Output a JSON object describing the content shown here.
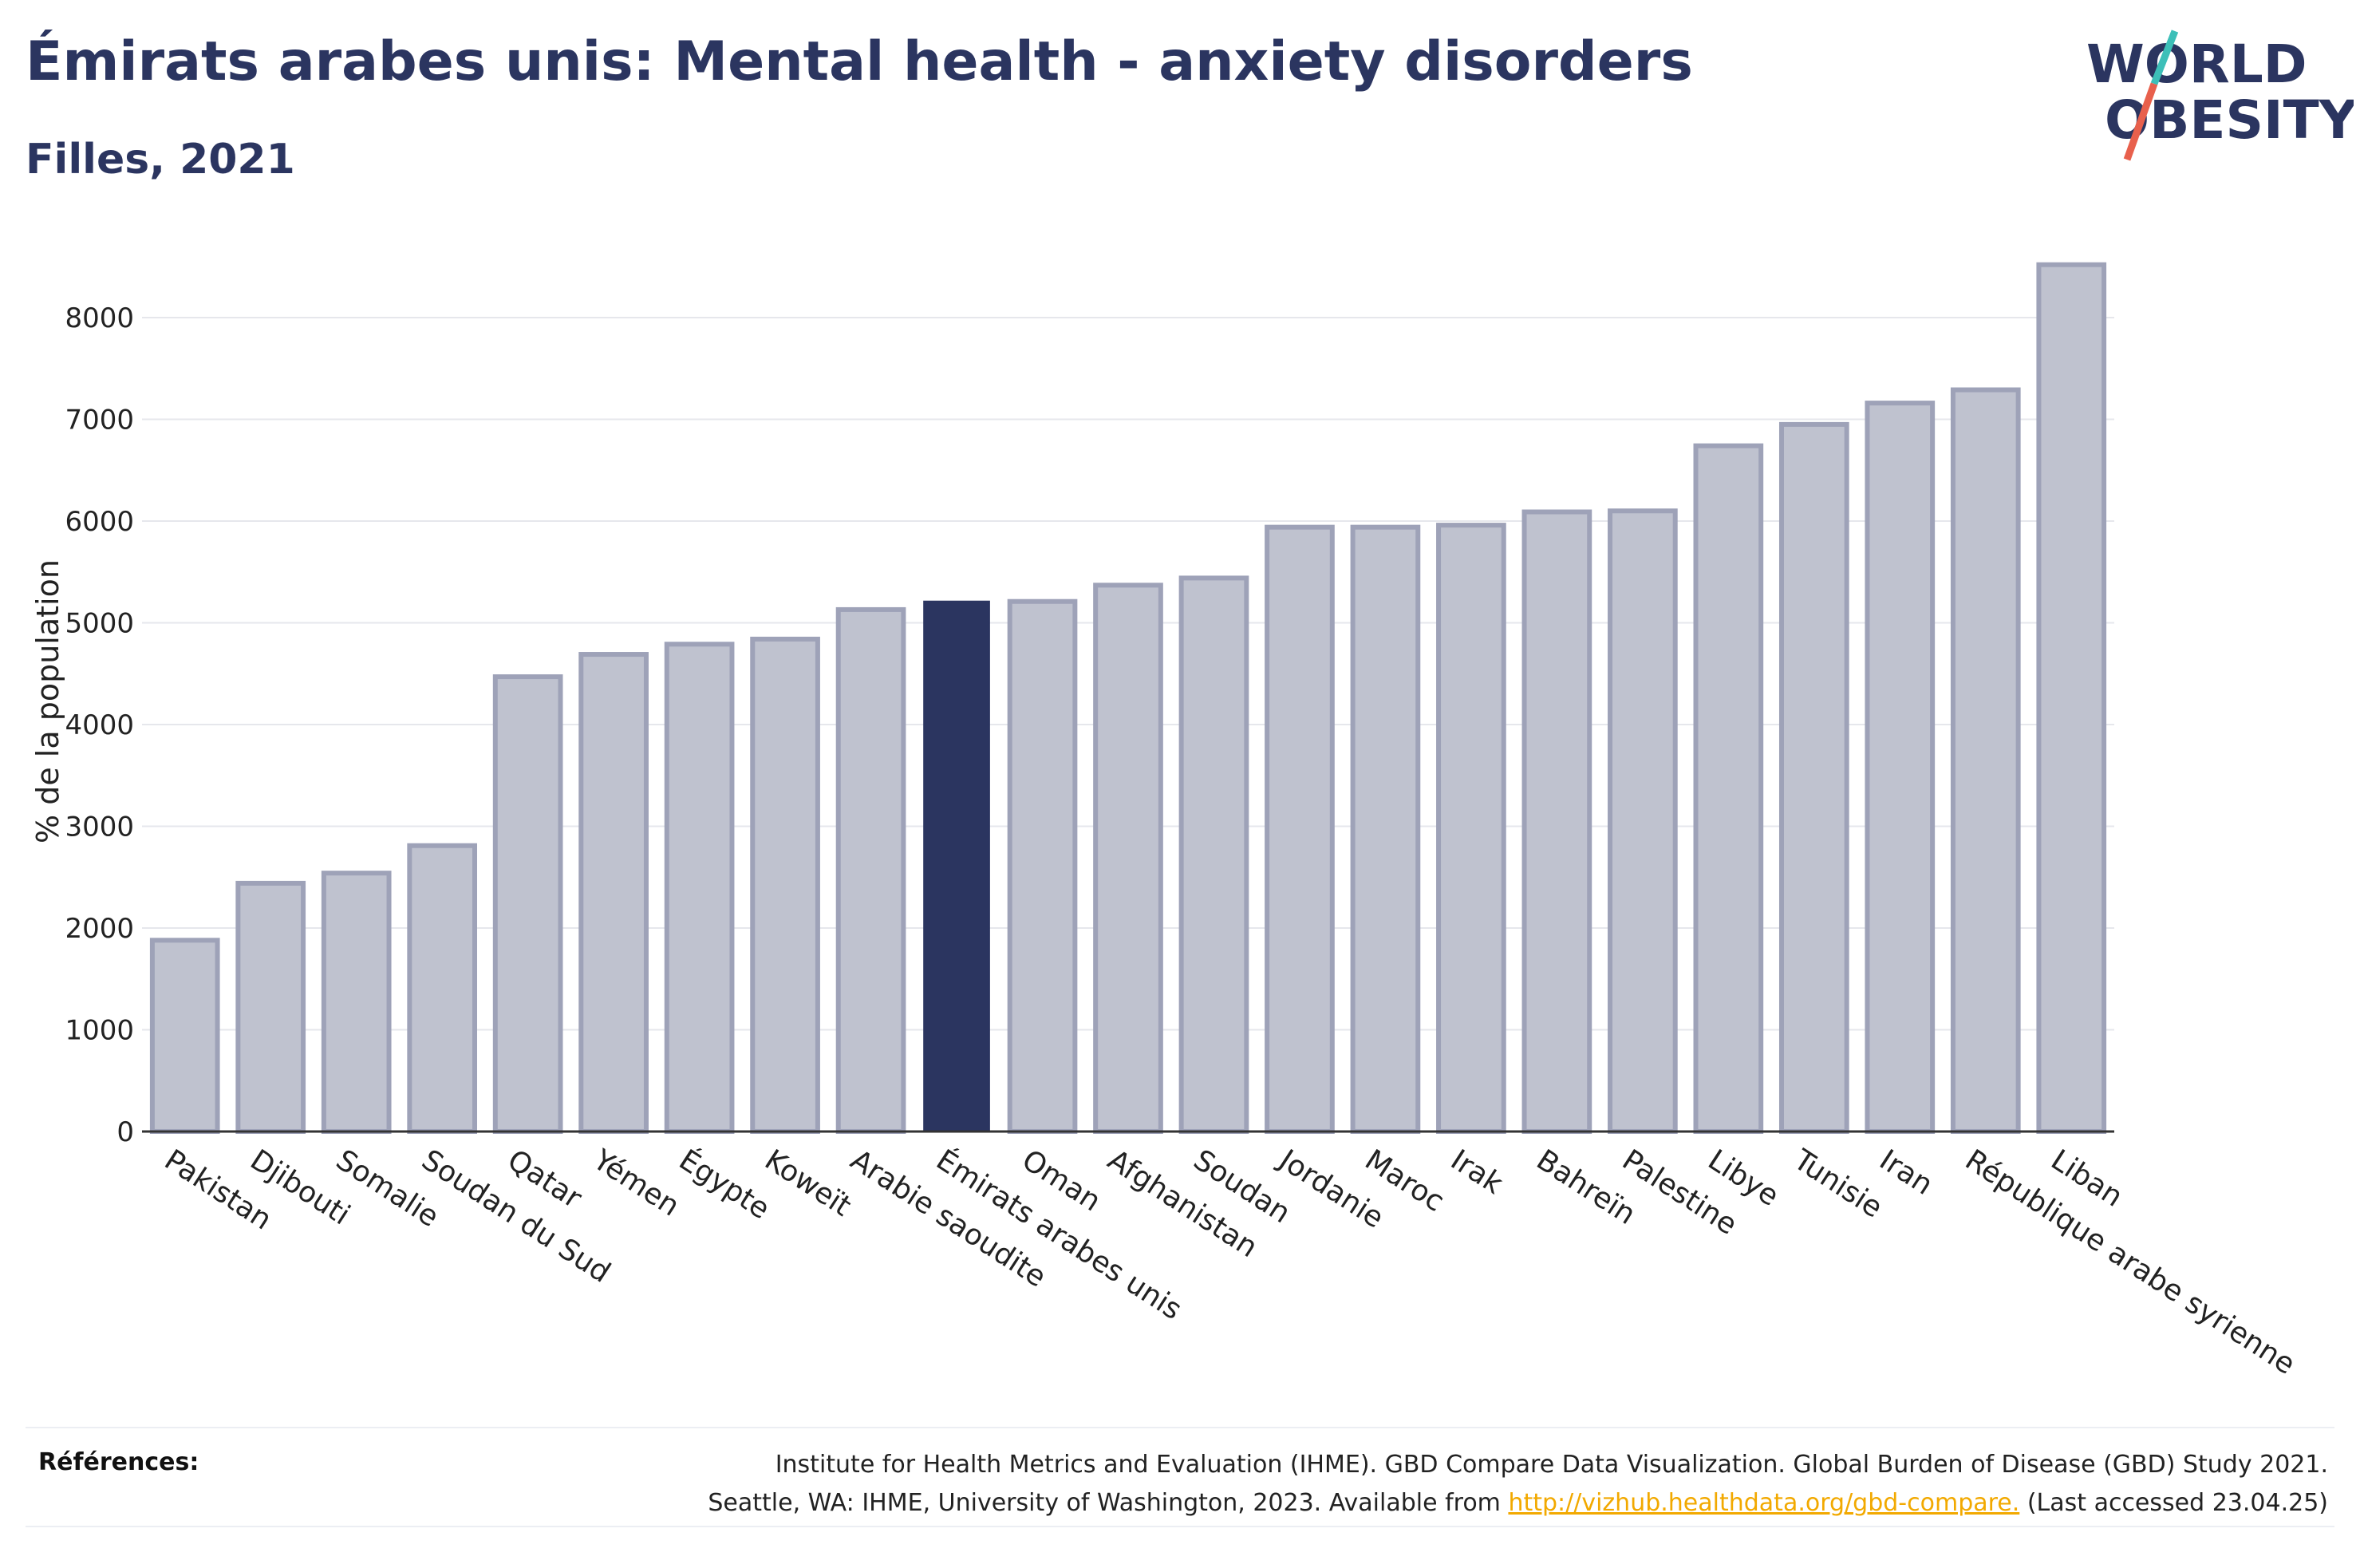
{
  "header": {
    "title": "Émirats arabes unis: Mental health - anxiety disorders",
    "subtitle": "Filles, 2021"
  },
  "logo": {
    "line1": "WORLD",
    "line2": "OBESITY",
    "colors": {
      "text": "#2b3560",
      "slash_top": "#3dbfb8",
      "slash_bottom": "#e8604c"
    }
  },
  "chart_data": {
    "type": "bar",
    "ylabel": "% de la population",
    "ylim": [
      0,
      9000
    ],
    "yticks": [
      0,
      1000,
      2000,
      3000,
      4000,
      5000,
      6000,
      7000,
      8000
    ],
    "grid": true,
    "highlight": "Émirats arabes unis",
    "colors": {
      "default": "#bfc2cf",
      "default_border": "#9ea2b8",
      "highlight": "#2b3560"
    },
    "categories": [
      "Pakistan",
      "Djibouti",
      "Somalie",
      "Soudan du Sud",
      "Qatar",
      "Yémen",
      "Égypte",
      "Koweït",
      "Arabie saoudite",
      "Émirats arabes unis",
      "Oman",
      "Afghanistan",
      "Soudan",
      "Jordanie",
      "Maroc",
      "Irak",
      "Bahreïn",
      "Palestine",
      "Libye",
      "Tunisie",
      "Iran",
      "République arabe syrienne",
      "Liban"
    ],
    "values": [
      1880,
      2440,
      2540,
      2810,
      4470,
      4690,
      4790,
      4840,
      5130,
      5210,
      5210,
      5370,
      5440,
      5940,
      5940,
      5960,
      6090,
      6100,
      6740,
      6950,
      7160,
      7290,
      8520
    ]
  },
  "footer": {
    "label": "Références:",
    "line1": "Institute for Health Metrics and Evaluation (IHME). GBD Compare Data Visualization. Global Burden of Disease (GBD) Study 2021.",
    "line2_pre": "Seattle, WA: IHME, University of Washington, 2023. Available from ",
    "link": "http://vizhub.healthdata.org/gbd-compare.",
    "line2_post": " (Last accessed 23.04.25)"
  }
}
